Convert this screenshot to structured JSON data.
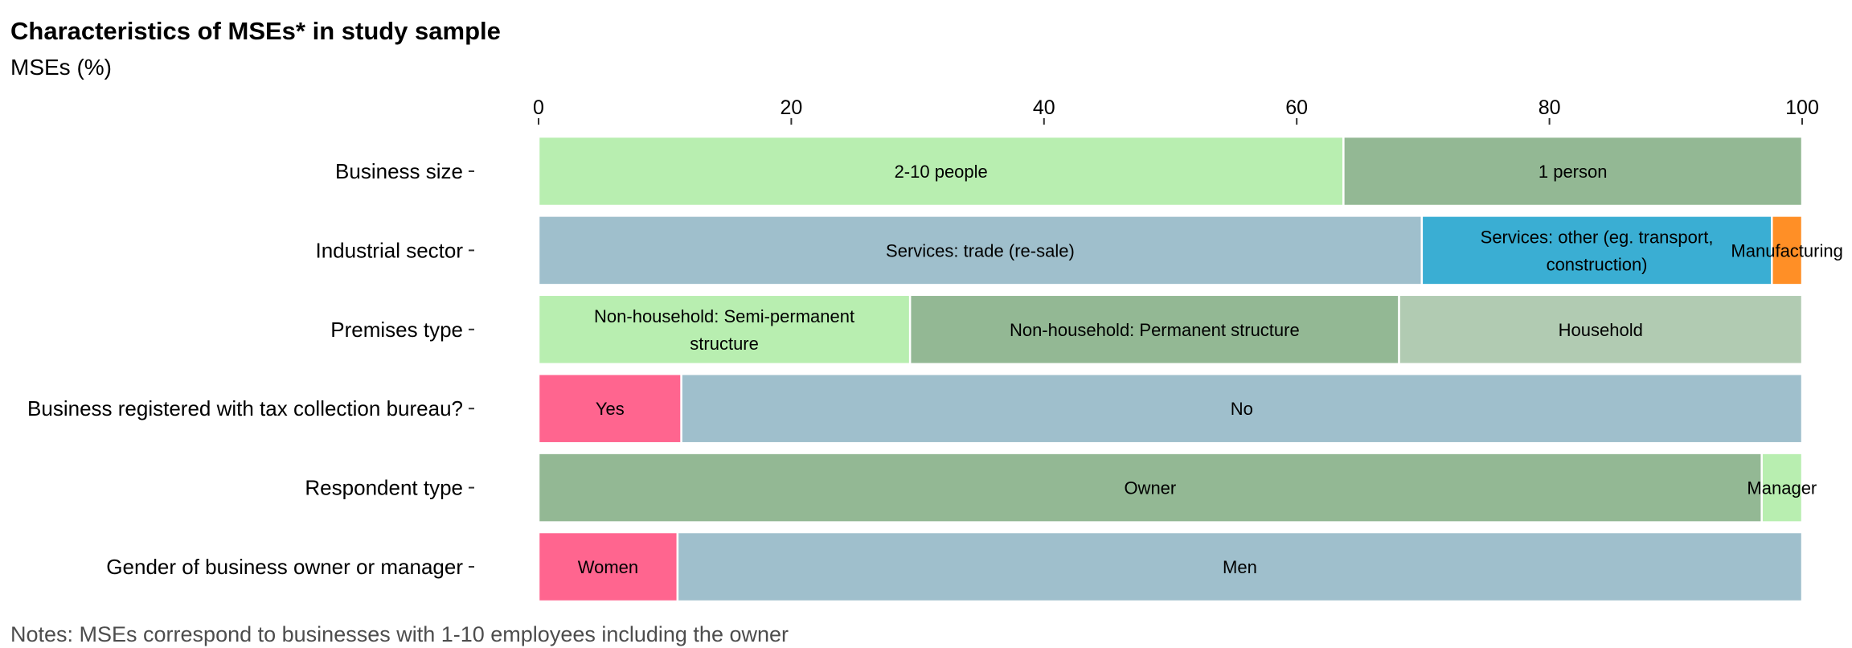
{
  "chart_data": {
    "type": "bar",
    "orientation": "horizontal",
    "stacked": true,
    "title": "Characteristics of MSEs* in study sample",
    "subtitle": "MSEs (%)",
    "note": "Notes: MSEs correspond to businesses with 1-10 employees including the owner",
    "xlim": [
      0,
      100
    ],
    "xticks": [
      0,
      20,
      40,
      60,
      80,
      100
    ],
    "grid": false,
    "legend": "none",
    "categories": [
      {
        "label": "Business size",
        "segments": [
          {
            "label": "2-10 people",
            "value": 63.7,
            "color": "#b8eeb0"
          },
          {
            "label": "1 person",
            "value": 36.3,
            "color": "#93b894"
          }
        ]
      },
      {
        "label": "Industrial sector",
        "segments": [
          {
            "label": "Services: trade (re-sale)",
            "value": 69.9,
            "color": "#9fbfcc"
          },
          {
            "label": "Services: other (eg. transport, construction)",
            "value": 27.7,
            "color": "#3aaed3"
          },
          {
            "label": "Manufacturing",
            "value": 2.4,
            "color": "#ff8f26"
          }
        ]
      },
      {
        "label": "Premises type",
        "segments": [
          {
            "label": "Non-household: Semi-permanent structure",
            "value": 29.4,
            "color": "#b8eeb0"
          },
          {
            "label": "Non-household: Permanent structure",
            "value": 38.7,
            "color": "#93b894"
          },
          {
            "label": "Household",
            "value": 31.9,
            "color": "#b1cbb2"
          }
        ]
      },
      {
        "label": "Business registered with tax collection bureau?",
        "segments": [
          {
            "label": "Yes",
            "value": 11.3,
            "color": "#ff658f"
          },
          {
            "label": "No",
            "value": 88.7,
            "color": "#9fbfcc"
          }
        ]
      },
      {
        "label": "Respondent type",
        "segments": [
          {
            "label": "Owner",
            "value": 96.8,
            "color": "#93b894"
          },
          {
            "label": "Manager",
            "value": 3.2,
            "color": "#b8eeb0"
          }
        ]
      },
      {
        "label": "Gender of business owner or manager",
        "segments": [
          {
            "label": "Women",
            "value": 11.0,
            "color": "#ff658f"
          },
          {
            "label": "Men",
            "value": 89.0,
            "color": "#9fbfcc"
          }
        ]
      }
    ]
  }
}
